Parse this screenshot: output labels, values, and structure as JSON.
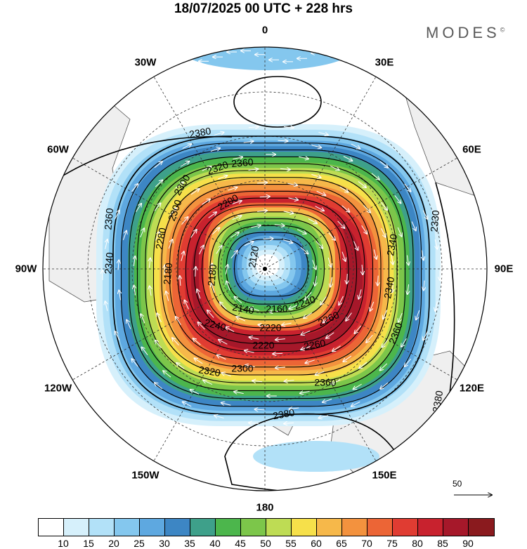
{
  "title": "18/07/2025  00 UTC  + 228 hrs",
  "brand": {
    "name": "MODES",
    "mark": "©"
  },
  "longitude_labels": [
    {
      "text": "0",
      "lon": 0
    },
    {
      "text": "30E",
      "lon": 30
    },
    {
      "text": "60E",
      "lon": 60
    },
    {
      "text": "90E",
      "lon": 90
    },
    {
      "text": "120E",
      "lon": 120
    },
    {
      "text": "150E",
      "lon": 150
    },
    {
      "text": "180",
      "lon": 180
    },
    {
      "text": "150W",
      "lon": -150
    },
    {
      "text": "120W",
      "lon": -120
    },
    {
      "text": "90W",
      "lon": -90
    },
    {
      "text": "60W",
      "lon": -60
    },
    {
      "text": "30W",
      "lon": -30
    }
  ],
  "contour_labels": [
    "2380",
    "2360",
    "2320",
    "2300",
    "2300",
    "2280",
    "2180",
    "2200",
    "2120",
    "2160",
    "2140",
    "2180",
    "2220",
    "2240",
    "2220",
    "2260",
    "2260",
    "2300",
    "2320",
    "2340",
    "2340",
    "2360",
    "2360",
    "2380",
    "2380",
    "2360",
    "2340",
    "2330",
    "2240"
  ],
  "reference_vector": {
    "value": "50"
  },
  "colorbar": {
    "colors": [
      "#ffffff",
      "#d6f0fb",
      "#b2e1f8",
      "#84c7ee",
      "#5ea8e0",
      "#3d86c4",
      "#3ea08a",
      "#4cb64c",
      "#7cc64a",
      "#bedc54",
      "#f6e04a",
      "#f6b84a",
      "#f3923e",
      "#ec6536",
      "#e03c32",
      "#c8222e",
      "#a6182a",
      "#8a1a1e"
    ],
    "ticks": [
      "10",
      "15",
      "20",
      "25",
      "30",
      "35",
      "40",
      "45",
      "50",
      "55",
      "60",
      "65",
      "70",
      "75",
      "80",
      "85",
      "90"
    ]
  },
  "legend": {
    "quantity": "wind speed",
    "units_shown": false
  }
}
